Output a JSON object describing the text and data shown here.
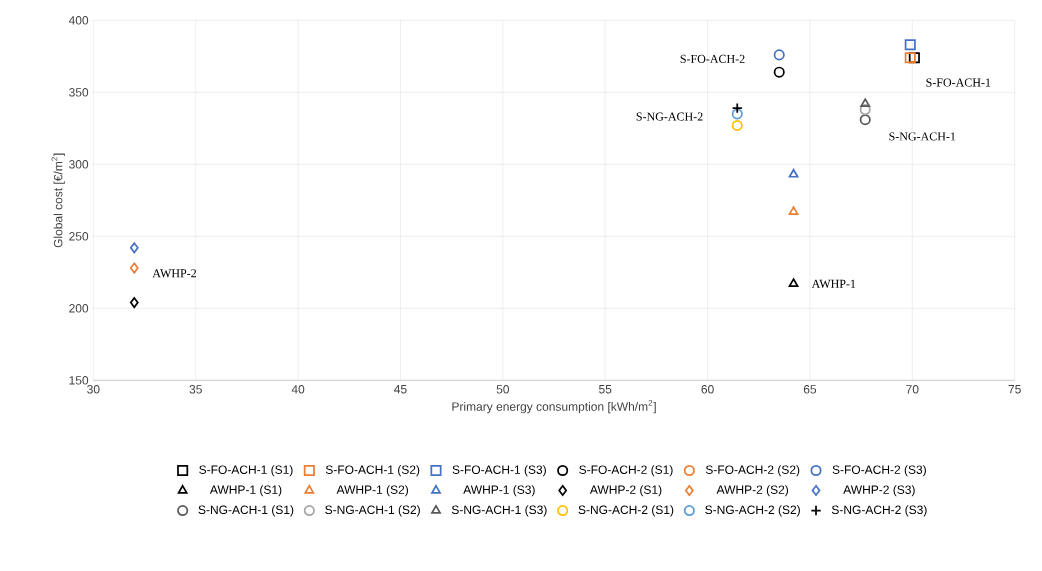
{
  "chart_data": {
    "type": "scatter",
    "xlabel": "Primary energy consumption [kWh/m$^{2}$]",
    "ylabel": "Global cost [€/m$^{2}$]",
    "xlim": [
      30,
      75
    ],
    "xticks": [
      30,
      35,
      40,
      45,
      50,
      55,
      60,
      65,
      70,
      75
    ],
    "ylim": [
      150,
      400
    ],
    "yticks": [
      150,
      200,
      250,
      300,
      350,
      400
    ],
    "grid": true,
    "legend": "bottom",
    "series": [
      {
        "name": "S-FO-ACH-1 (S1)",
        "color": "#000000",
        "marker": "square",
        "x": [
          70.1
        ],
        "values": [
          374
        ]
      },
      {
        "name": "S-FO-ACH-1 (S2)",
        "color": "#ed7d31",
        "marker": "square",
        "x": [
          69.9
        ],
        "values": [
          374
        ]
      },
      {
        "name": "S-FO-ACH-1 (S3)",
        "color": "#4472c4",
        "marker": "square",
        "x": [
          69.9
        ],
        "values": [
          383
        ]
      },
      {
        "name": "S-FO-ACH-2 (S1)",
        "color": "#000000",
        "marker": "circle",
        "x": [
          63.5
        ],
        "values": [
          364
        ]
      },
      {
        "name": "S-FO-ACH-2 (S2)",
        "color": "#ed7d31",
        "marker": "circle",
        "x": [
          null
        ],
        "values": [
          null
        ]
      },
      {
        "name": "S-FO-ACH-2 (S3)",
        "color": "#4472c4",
        "marker": "circle",
        "x": [
          63.5
        ],
        "values": [
          376
        ]
      },
      {
        "name": "AWHP-1 (S1)",
        "color": "#000000",
        "marker": "triangle",
        "x": [
          64.2
        ],
        "values": [
          217
        ]
      },
      {
        "name": "AWHP-1 (S2)",
        "color": "#ed7d31",
        "marker": "triangle",
        "x": [
          64.2
        ],
        "values": [
          267
        ]
      },
      {
        "name": "AWHP-1 (S3)",
        "color": "#4472c4",
        "marker": "triangle",
        "x": [
          64.2
        ],
        "values": [
          293
        ]
      },
      {
        "name": "AWHP-2 (S1)",
        "color": "#000000",
        "marker": "diamond",
        "x": [
          32.0
        ],
        "values": [
          204
        ]
      },
      {
        "name": "AWHP-2 (S2)",
        "color": "#ed7d31",
        "marker": "diamond",
        "x": [
          32.0
        ],
        "values": [
          228
        ]
      },
      {
        "name": "AWHP-2 (S3)",
        "color": "#4472c4",
        "marker": "diamond",
        "x": [
          32.0
        ],
        "values": [
          242
        ]
      },
      {
        "name": "S-NG-ACH-1 (S1)",
        "color": "#595959",
        "marker": "circle",
        "x": [
          67.7
        ],
        "values": [
          331
        ]
      },
      {
        "name": "S-NG-ACH-1 (S2)",
        "color": "#a5a5a5",
        "marker": "circle",
        "x": [
          67.7
        ],
        "values": [
          338
        ]
      },
      {
        "name": "S-NG-ACH-1 (S3)",
        "color": "#595959",
        "marker": "triangle",
        "x": [
          67.7
        ],
        "values": [
          342
        ]
      },
      {
        "name": "S-NG-ACH-2 (S1)",
        "color": "#ffc000",
        "marker": "circle",
        "x": [
          61.45
        ],
        "values": [
          327
        ]
      },
      {
        "name": "S-NG-ACH-2 (S2)",
        "color": "#5b9bd5",
        "marker": "circle",
        "x": [
          61.45
        ],
        "values": [
          335
        ]
      },
      {
        "name": "S-NG-ACH-2 (S3)",
        "color": "#000000",
        "marker": "cross",
        "x": [
          61.45
        ],
        "values": [
          339
        ]
      }
    ],
    "annotations": [
      {
        "text": "S-FO-ACH-2",
        "x": 63.5,
        "y": 376
      },
      {
        "text": "S-NG-ACH-2",
        "x": 61.45,
        "y": 335
      },
      {
        "text": "S-FO-ACH-1",
        "x": 69.9,
        "y": 374
      },
      {
        "text": "S-NG-ACH-1",
        "x": 67.7,
        "y": 331
      },
      {
        "text": "AWHP-1",
        "x": 64.2,
        "y": 217
      },
      {
        "text": "AWHP-2",
        "x": 32.0,
        "y": 228
      }
    ]
  }
}
